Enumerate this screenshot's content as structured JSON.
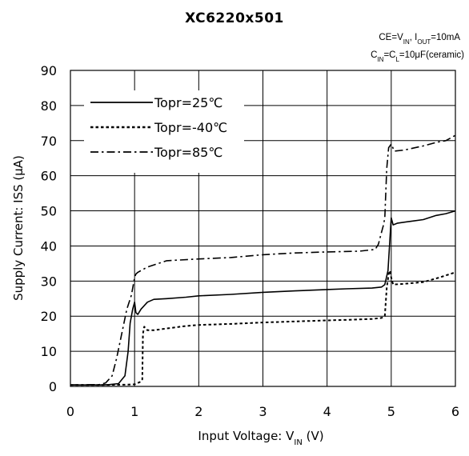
{
  "chart_data": {
    "type": "line",
    "title": "XC6220x501",
    "conditions": [
      "CE=V_IN, I_OUT=10mA",
      "C_IN=C_L=10μF(ceramic)"
    ],
    "xlabel": "Input Voltage: V_IN (V)",
    "ylabel": "Supply Current: ISS (μA)",
    "xlim": [
      0,
      6
    ],
    "ylim": [
      0,
      90
    ],
    "xticks": [
      0,
      1,
      2,
      3,
      4,
      5,
      6
    ],
    "yticks": [
      0,
      10,
      20,
      30,
      40,
      50,
      60,
      70,
      80,
      90
    ],
    "grid": true,
    "legend_position": "top-left",
    "series": [
      {
        "name": "Topr=25℃",
        "style": "solid",
        "points": [
          [
            0,
            0.4
          ],
          [
            0.45,
            0.4
          ],
          [
            0.6,
            0.5
          ],
          [
            0.75,
            0.8
          ],
          [
            0.85,
            3
          ],
          [
            0.9,
            10
          ],
          [
            0.93,
            18
          ],
          [
            0.97,
            22
          ],
          [
            1.0,
            24
          ],
          [
            1.02,
            21
          ],
          [
            1.05,
            20.5
          ],
          [
            1.1,
            22
          ],
          [
            1.2,
            24
          ],
          [
            1.3,
            24.8
          ],
          [
            1.5,
            25
          ],
          [
            1.8,
            25.4
          ],
          [
            2.0,
            25.8
          ],
          [
            2.5,
            26.2
          ],
          [
            3.0,
            26.8
          ],
          [
            3.5,
            27.2
          ],
          [
            4.0,
            27.6
          ],
          [
            4.3,
            27.8
          ],
          [
            4.7,
            28
          ],
          [
            4.85,
            28.3
          ],
          [
            4.9,
            29
          ],
          [
            4.95,
            33
          ],
          [
            4.98,
            42
          ],
          [
            5.0,
            48
          ],
          [
            5.03,
            46
          ],
          [
            5.1,
            46.5
          ],
          [
            5.3,
            47
          ],
          [
            5.5,
            47.5
          ],
          [
            5.7,
            48.7
          ],
          [
            5.85,
            49.2
          ],
          [
            6.0,
            50
          ]
        ]
      },
      {
        "name": "Topr=-40℃",
        "style": "dotted",
        "points": [
          [
            0,
            0.4
          ],
          [
            0.5,
            0.4
          ],
          [
            0.9,
            0.5
          ],
          [
            1.0,
            0.6
          ],
          [
            1.08,
            1.2
          ],
          [
            1.12,
            2
          ],
          [
            1.13,
            15
          ],
          [
            1.15,
            17
          ],
          [
            1.2,
            16
          ],
          [
            1.3,
            16
          ],
          [
            1.5,
            16.5
          ],
          [
            1.8,
            17.2
          ],
          [
            2.0,
            17.5
          ],
          [
            2.5,
            17.8
          ],
          [
            3.0,
            18.2
          ],
          [
            3.5,
            18.5
          ],
          [
            4.0,
            18.8
          ],
          [
            4.4,
            19
          ],
          [
            4.7,
            19.2
          ],
          [
            4.85,
            19.5
          ],
          [
            4.9,
            20
          ],
          [
            4.93,
            28
          ],
          [
            4.96,
            32
          ],
          [
            4.98,
            33
          ],
          [
            5.0,
            31
          ],
          [
            5.03,
            29
          ],
          [
            5.2,
            29.2
          ],
          [
            5.5,
            29.7
          ],
          [
            5.75,
            31
          ],
          [
            6.0,
            32.5
          ]
        ]
      },
      {
        "name": "Topr=85℃",
        "style": "dashdot",
        "points": [
          [
            0,
            0.4
          ],
          [
            0.45,
            0.5
          ],
          [
            0.55,
            1
          ],
          [
            0.65,
            3
          ],
          [
            0.72,
            8
          ],
          [
            0.8,
            15
          ],
          [
            0.88,
            22
          ],
          [
            0.95,
            26
          ],
          [
            1.0,
            31
          ],
          [
            1.02,
            32
          ],
          [
            1.05,
            32.5
          ],
          [
            1.2,
            34
          ],
          [
            1.5,
            35.8
          ],
          [
            2.0,
            36.3
          ],
          [
            2.5,
            36.7
          ],
          [
            3.0,
            37.5
          ],
          [
            3.5,
            38
          ],
          [
            4.0,
            38.3
          ],
          [
            4.5,
            38.5
          ],
          [
            4.75,
            39
          ],
          [
            4.8,
            40.5
          ],
          [
            4.85,
            44
          ],
          [
            4.88,
            46
          ],
          [
            4.9,
            48
          ],
          [
            4.93,
            62
          ],
          [
            4.96,
            68
          ],
          [
            5.0,
            69
          ],
          [
            5.05,
            67
          ],
          [
            5.2,
            67.3
          ],
          [
            5.5,
            68.5
          ],
          [
            5.7,
            69.5
          ],
          [
            5.85,
            70
          ],
          [
            6.0,
            71.5
          ]
        ]
      }
    ]
  }
}
